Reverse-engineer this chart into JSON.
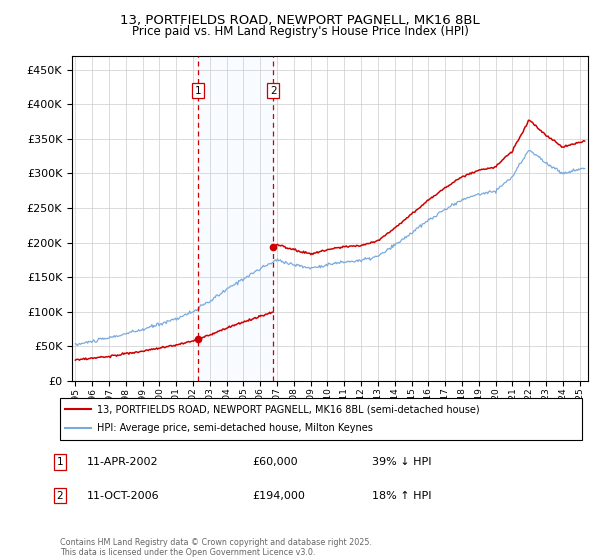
{
  "title": "13, PORTFIELDS ROAD, NEWPORT PAGNELL, MK16 8BL",
  "subtitle": "Price paid vs. HM Land Registry's House Price Index (HPI)",
  "legend_line1": "13, PORTFIELDS ROAD, NEWPORT PAGNELL, MK16 8BL (semi-detached house)",
  "legend_line2": "HPI: Average price, semi-detached house, Milton Keynes",
  "footer": "Contains HM Land Registry data © Crown copyright and database right 2025.\nThis data is licensed under the Open Government Licence v3.0.",
  "transactions": [
    {
      "num": 1,
      "date": "11-APR-2002",
      "price": 60000,
      "pct": "39% ↓ HPI",
      "year": 2002.28
    },
    {
      "num": 2,
      "date": "11-OCT-2006",
      "price": 194000,
      "pct": "18% ↑ HPI",
      "year": 2006.78
    }
  ],
  "hpi_color": "#7aaadd",
  "price_color": "#cc0000",
  "vline_color": "#cc0000",
  "shade_color": "#ddeeff",
  "ylim": [
    0,
    470000
  ],
  "yticks": [
    0,
    50000,
    100000,
    150000,
    200000,
    250000,
    300000,
    350000,
    400000,
    450000
  ],
  "xlim_start": 1994.8,
  "xlim_end": 2025.5,
  "hpi_anchors_years": [
    1995,
    1997,
    1999,
    2001,
    2002,
    2003,
    2004,
    2005,
    2006,
    2007,
    2008,
    2009,
    2010,
    2011,
    2012,
    2013,
    2014,
    2015,
    2016,
    2017,
    2018,
    2019,
    2020,
    2021,
    2022,
    2023,
    2024,
    2025.3
  ],
  "hpi_anchors_vals": [
    52000,
    62000,
    74000,
    90000,
    100000,
    115000,
    132000,
    148000,
    162000,
    175000,
    168000,
    163000,
    168000,
    172000,
    174000,
    180000,
    196000,
    214000,
    232000,
    248000,
    262000,
    270000,
    275000,
    295000,
    335000,
    315000,
    300000,
    308000
  ]
}
